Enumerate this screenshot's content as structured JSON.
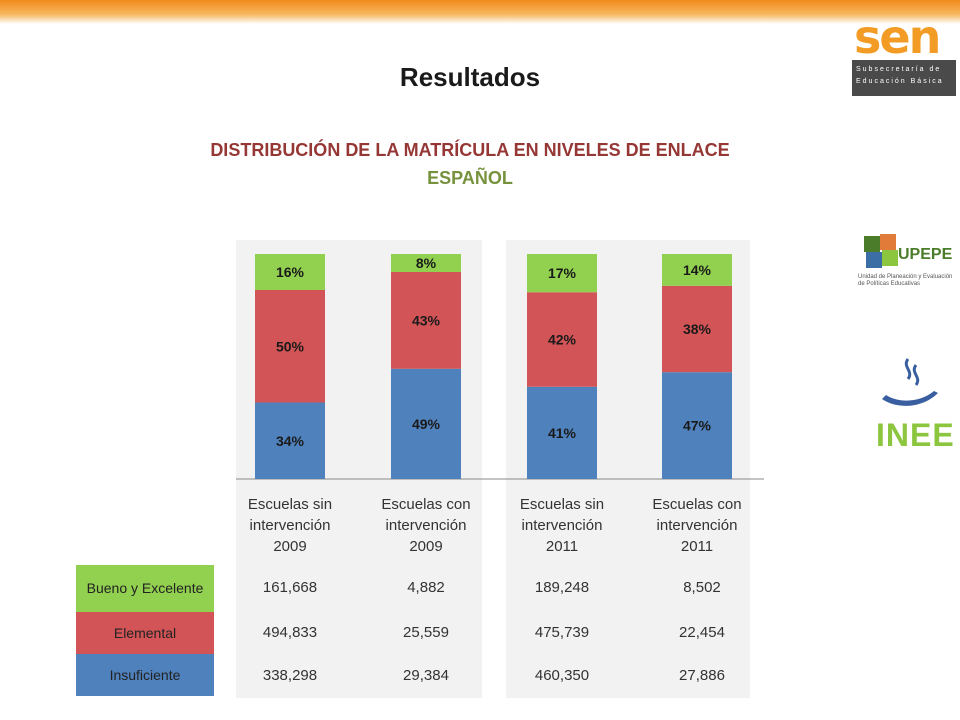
{
  "header": {
    "title": "Resultados",
    "subtitle": "DISTRIBUCIÓN DE LA MATRÍCULA EN NIVELES DE ENLACE",
    "subject": "ESPAÑOL"
  },
  "logos": {
    "sep_word": "sen",
    "sep_subtitle": "Subsecretaría de Educación Básica",
    "upepe": "UPEPE",
    "upepe_small": "Unidad de Planeación y Evaluación de Políticas Educativas",
    "inee": "INEE"
  },
  "colors": {
    "insuficiente": "#4f81bd",
    "elemental": "#d25456",
    "bueno": "#92d050",
    "panel": "#f2f2f2",
    "title_red": "#953735",
    "title_green": "#76923c"
  },
  "chart_data": {
    "type": "bar",
    "stacked": true,
    "categories": [
      "Escuelas sin intervención 2009",
      "Escuelas con intervención 2009",
      "Escuelas sin intervención 2011",
      "Escuelas con intervención 2011"
    ],
    "category_lines": [
      [
        "Escuelas sin",
        "intervención",
        "2009"
      ],
      [
        "Escuelas con",
        "intervención",
        "2009"
      ],
      [
        "Escuelas sin",
        "intervención",
        "2011"
      ],
      [
        "Escuelas con",
        "intervención",
        "2011"
      ]
    ],
    "ylim": [
      0,
      100
    ],
    "series": [
      {
        "name": "Insuficiente",
        "color": "#4f81bd",
        "values": [
          34,
          49,
          41,
          47
        ],
        "labels": [
          "34%",
          "49%",
          "41%",
          "47%"
        ]
      },
      {
        "name": "Elemental",
        "color": "#d25456",
        "values": [
          50,
          43,
          42,
          38
        ],
        "labels": [
          "50%",
          "43%",
          "42%",
          "38%"
        ]
      },
      {
        "name": "Bueno y Excelente",
        "color": "#92d050",
        "values": [
          16,
          8,
          17,
          14
        ],
        "labels": [
          "16%",
          "8%",
          "17%",
          "14%"
        ]
      }
    ],
    "table": {
      "rows": [
        {
          "label": "Bueno y Excelente",
          "color": "#92d050",
          "values": [
            "161,668",
            "4,882",
            "189,248",
            "8,502"
          ]
        },
        {
          "label": "Elemental",
          "color": "#d25456",
          "values": [
            "494,833",
            "25,559",
            "475,739",
            "22,454"
          ]
        },
        {
          "label": "Insuficiente",
          "color": "#4f81bd",
          "values": [
            "338,298",
            "29,384",
            "460,350",
            "27,886"
          ]
        }
      ]
    }
  }
}
